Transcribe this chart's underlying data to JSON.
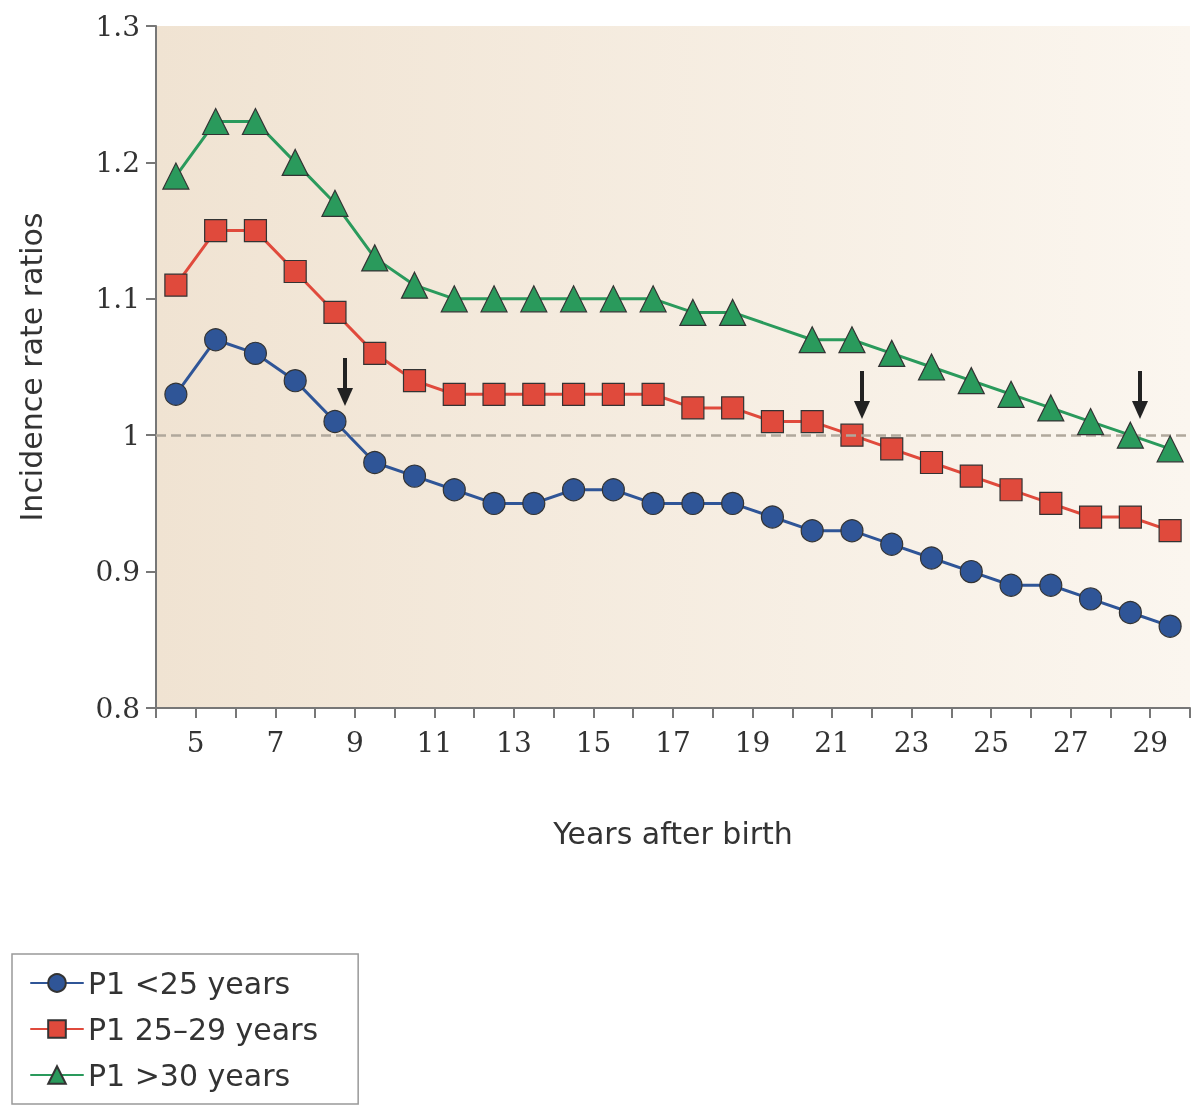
{
  "chart_data": {
    "type": "line",
    "xlabel": "Years after birth",
    "ylabel": "Incidence rate ratios",
    "x": [
      4.5,
      5.5,
      6.5,
      7.5,
      8.5,
      9.5,
      10.5,
      11.5,
      12.5,
      13.5,
      14.5,
      15.5,
      16.5,
      17.5,
      18.5,
      19.5,
      20.5,
      21.5,
      22.5,
      23.5,
      24.5,
      25.5,
      26.5,
      27.5,
      28.5,
      29.5
    ],
    "series": [
      {
        "name": "P1 <25 years",
        "color": "#2f5597",
        "marker": "circle",
        "values": [
          1.03,
          1.07,
          1.06,
          1.04,
          1.01,
          0.98,
          0.97,
          0.96,
          0.95,
          0.95,
          0.96,
          0.96,
          0.95,
          0.95,
          0.95,
          0.94,
          0.93,
          0.93,
          0.92,
          0.91,
          0.9,
          0.89,
          0.89,
          0.88,
          0.87,
          0.86
        ]
      },
      {
        "name": "P1 25–29 years",
        "color": "#e04a3c",
        "marker": "square",
        "values": [
          1.11,
          1.15,
          1.15,
          1.12,
          1.09,
          1.06,
          1.04,
          1.03,
          1.03,
          1.03,
          1.03,
          1.03,
          1.03,
          1.02,
          1.02,
          1.01,
          1.01,
          1.0,
          0.99,
          0.98,
          0.97,
          0.96,
          0.95,
          0.94,
          0.94,
          0.93
        ]
      },
      {
        "name": "P1 >30 years",
        "color": "#2a9a5c",
        "marker": "triangle",
        "values": [
          1.19,
          1.23,
          1.23,
          1.2,
          1.17,
          1.13,
          1.11,
          1.1,
          1.1,
          1.1,
          1.1,
          1.1,
          1.1,
          1.09,
          1.09,
          null,
          1.07,
          1.07,
          1.06,
          1.05,
          1.04,
          1.03,
          1.02,
          1.01,
          1.0,
          0.99
        ]
      }
    ],
    "xlim": [
      4,
      30
    ],
    "xticks": [
      {
        "value": 4,
        "label": null
      },
      5,
      {
        "value": 6,
        "label": null
      },
      7,
      {
        "value": 8,
        "label": null
      },
      9,
      {
        "value": 10,
        "label": null
      },
      11,
      {
        "value": 12,
        "label": null
      },
      13,
      {
        "value": 14,
        "label": null
      },
      15,
      {
        "value": 16,
        "label": null
      },
      17,
      {
        "value": 18,
        "label": null
      },
      19,
      {
        "value": 20,
        "label": null
      },
      21,
      {
        "value": 22,
        "label": null
      },
      23,
      {
        "value": 24,
        "label": null
      },
      25,
      {
        "value": 26,
        "label": null
      },
      27,
      {
        "value": 28,
        "label": null
      },
      29,
      {
        "value": 30,
        "label": null
      }
    ],
    "ylim": [
      0.8,
      1.3
    ],
    "yticks": [
      0.8,
      0.9,
      1,
      1.1,
      1.2,
      1.3
    ],
    "ref_lines": [
      {
        "axis": "y",
        "value": 1,
        "color": "#b0a89c",
        "line_style": "dashed"
      }
    ],
    "grid": false,
    "legend": "bottom left",
    "line_style": "solid"
  }
}
